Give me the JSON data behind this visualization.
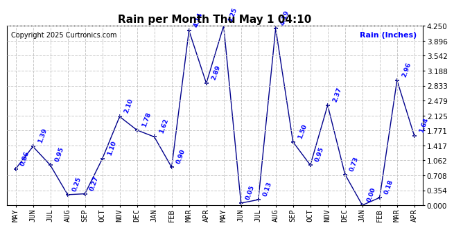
{
  "title": "Rain per Month Thu May 1 04:10",
  "copyright": "Copyright 2025 Curtronics.com",
  "right_label": "Rain (Inches)",
  "months": [
    "MAY",
    "JUN",
    "JUL",
    "AUG",
    "SEP",
    "OCT",
    "NOV",
    "DEC",
    "JAN",
    "FEB",
    "MAR",
    "APR",
    "MAY",
    "JUN",
    "JUL",
    "AUG",
    "SEP",
    "OCT",
    "NOV",
    "DEC",
    "JAN",
    "FEB",
    "MAR",
    "APR"
  ],
  "values": [
    0.86,
    1.39,
    0.95,
    0.25,
    0.27,
    1.1,
    2.1,
    1.78,
    1.62,
    0.9,
    4.14,
    2.89,
    4.25,
    0.05,
    0.13,
    4.19,
    1.5,
    0.95,
    2.37,
    0.73,
    0.0,
    0.18,
    2.96,
    1.64
  ],
  "line_color": "#00008B",
  "marker_color": "#00008B",
  "title_color": "#000000",
  "label_color": "#0000FF",
  "right_label_color": "#0000FF",
  "copyright_color": "#000000",
  "grid_color": "#C8C8C8",
  "background_color": "#FFFFFF",
  "ylim": [
    0.0,
    4.25
  ],
  "yticks": [
    0.0,
    0.354,
    0.708,
    1.062,
    1.417,
    1.771,
    2.125,
    2.479,
    2.833,
    3.188,
    3.542,
    3.896,
    4.25
  ]
}
